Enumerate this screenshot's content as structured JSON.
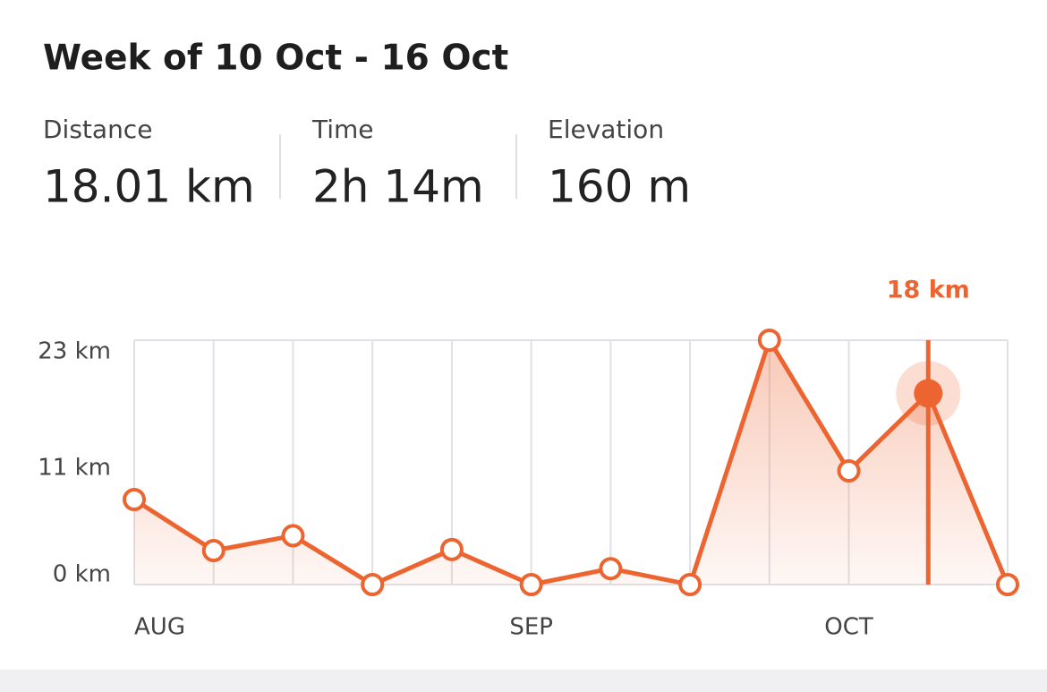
{
  "header": {
    "title": "Week of 10 Oct - 16 Oct"
  },
  "stats": [
    {
      "label": "Distance",
      "value": "18.01 km"
    },
    {
      "label": "Time",
      "value": "2h 14m"
    },
    {
      "label": "Elevation",
      "value": "160 m"
    }
  ],
  "chart_data": {
    "type": "area",
    "categories": [
      "AUG",
      null,
      null,
      null,
      null,
      "SEP",
      null,
      null,
      null,
      "OCT",
      null,
      null
    ],
    "values": [
      8,
      3.2,
      4.6,
      0,
      3.3,
      0,
      1.5,
      0,
      23,
      10.7,
      18,
      0
    ],
    "value_labels": [
      null,
      null,
      null,
      null,
      null,
      null,
      null,
      null,
      null,
      null,
      "18 km",
      null
    ],
    "color": "#ec6430",
    "ylim": [
      0,
      23
    ],
    "yticks": [
      {
        "value": 0,
        "label": "0 km"
      },
      {
        "value": 11,
        "label": "11 km"
      },
      {
        "value": 23,
        "label": "23 km"
      }
    ]
  }
}
